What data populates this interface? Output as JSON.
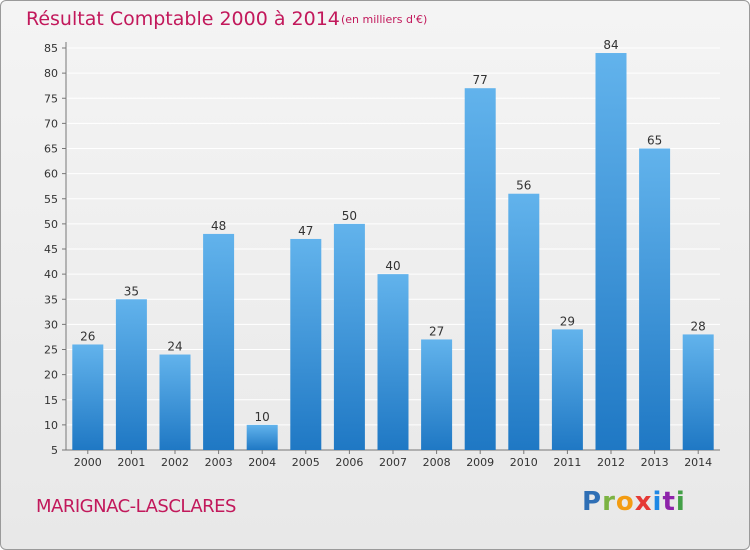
{
  "title": "Résultat Comptable 2000 à 2014",
  "subtitle": "(en milliers d'€)",
  "place": "MARIGNAC-LASCLARES",
  "brand": {
    "text": "Proxiti",
    "letter_colors": [
      "#2f6fb5",
      "#7cb342",
      "#f39c12",
      "#e53935",
      "#1e88e5",
      "#8e24aa",
      "#43a047"
    ]
  },
  "colors": {
    "bar_light": "#62b3ec",
    "bar_dark": "#1f78c4",
    "grid": "#ffffff",
    "axis_text": "#333333",
    "accent": "#c2185b"
  },
  "chart_data": {
    "type": "bar",
    "title": "Résultat Comptable 2000 à 2014",
    "subtitle": "(en milliers d'€)",
    "xlabel": "",
    "ylabel": "",
    "categories": [
      "2000",
      "2001",
      "2002",
      "2003",
      "2004",
      "2005",
      "2006",
      "2007",
      "2008",
      "2009",
      "2010",
      "2011",
      "2012",
      "2013",
      "2014"
    ],
    "values": [
      26,
      35,
      24,
      48,
      10,
      47,
      50,
      40,
      27,
      77,
      56,
      29,
      84,
      65,
      28
    ],
    "ylim": [
      5,
      85
    ],
    "yticks": [
      5,
      10,
      15,
      20,
      25,
      30,
      35,
      40,
      45,
      50,
      55,
      60,
      65,
      70,
      75,
      80,
      85
    ],
    "grid": true,
    "legend": "none",
    "data_labels": true
  }
}
